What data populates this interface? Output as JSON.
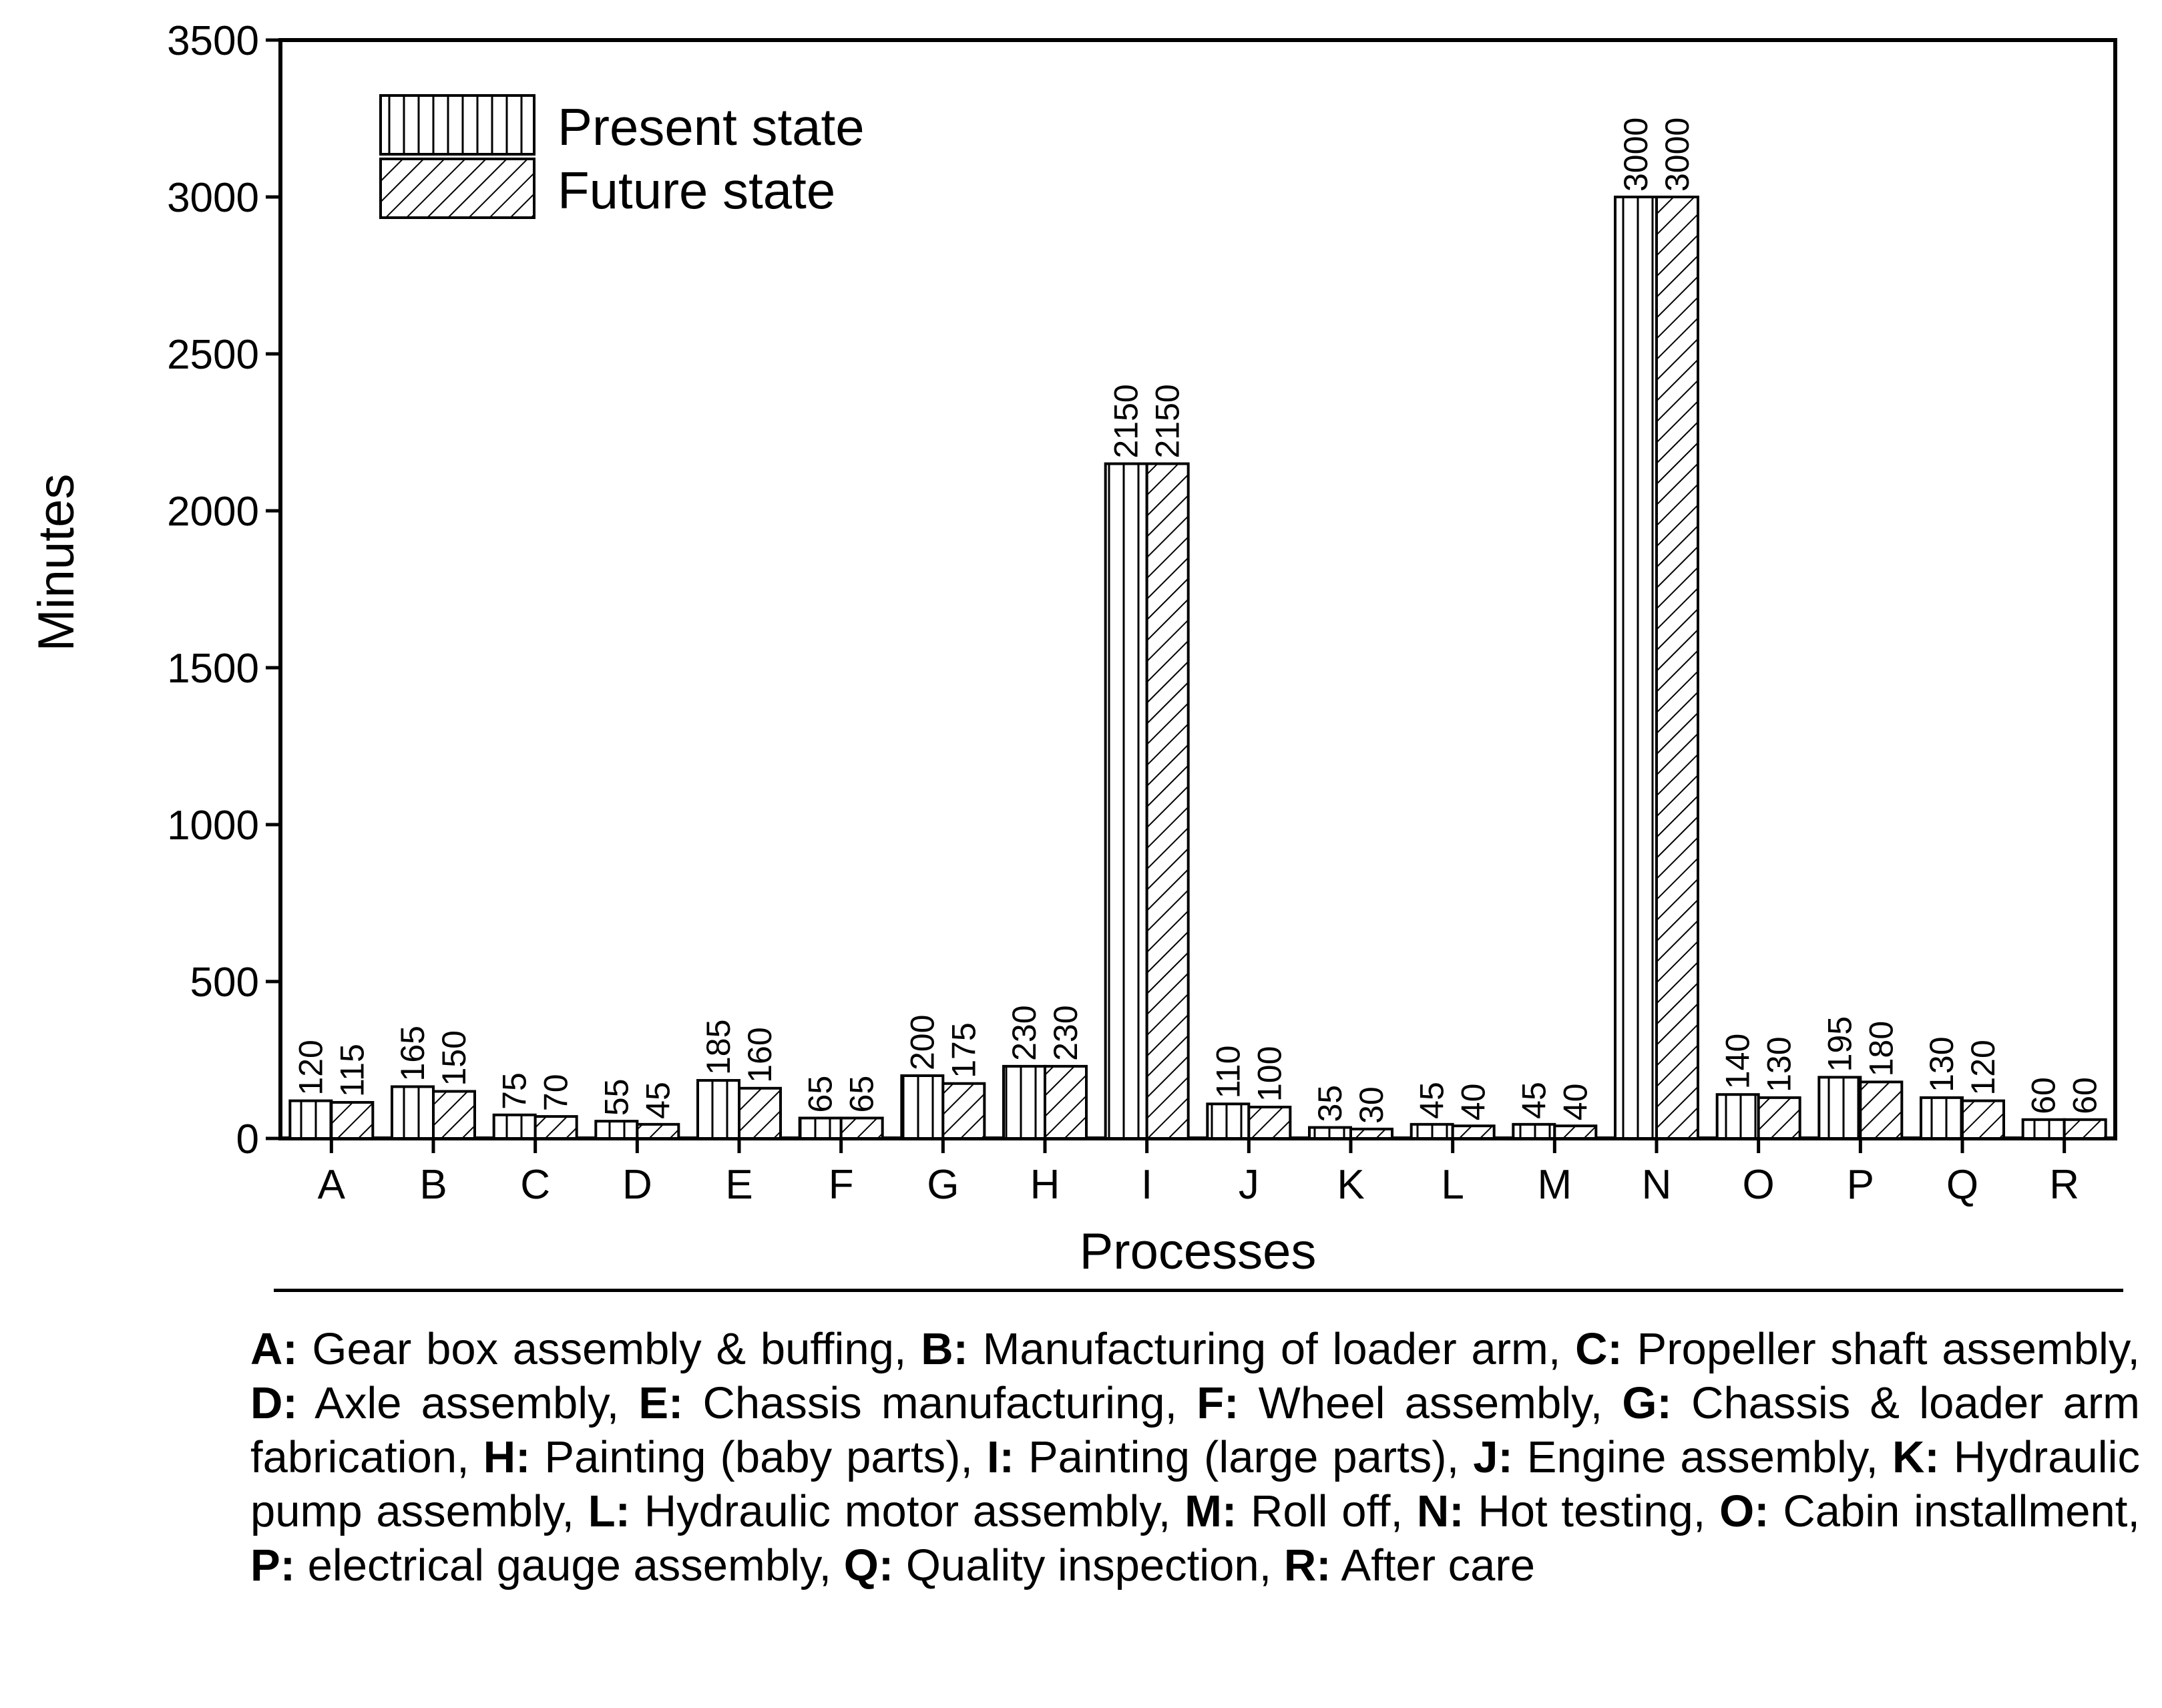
{
  "chart_data": {
    "type": "bar",
    "title": "",
    "xlabel": "Processes",
    "ylabel": "Minutes",
    "ylim": [
      0,
      3500
    ],
    "yticks": [
      0,
      500,
      1000,
      1500,
      2000,
      2500,
      3000,
      3500
    ],
    "categories": [
      "A",
      "B",
      "C",
      "D",
      "E",
      "F",
      "G",
      "H",
      "I",
      "J",
      "K",
      "L",
      "M",
      "N",
      "O",
      "P",
      "Q",
      "R"
    ],
    "series": [
      {
        "name": "Present state",
        "pattern": "vertical-lines",
        "values": [
          120,
          165,
          75,
          55,
          185,
          65,
          200,
          230,
          2150,
          110,
          35,
          45,
          45,
          3000,
          140,
          195,
          130,
          60
        ],
        "labels": [
          "120",
          "165",
          "75",
          "55",
          "185",
          "65",
          "200",
          "230",
          "2150",
          "110",
          "35",
          "45",
          "45",
          "3000",
          "140",
          "195",
          "130",
          "60"
        ]
      },
      {
        "name": "Future state",
        "pattern": "diagonal-lines",
        "values": [
          115,
          150,
          70,
          45,
          160,
          65,
          175,
          230,
          2150,
          100,
          30,
          40,
          40,
          3000,
          130,
          180,
          120,
          60
        ],
        "labels": [
          "115",
          "150",
          "70",
          "45",
          "160",
          "65",
          "175",
          "230",
          "2150",
          "100",
          "30",
          "40",
          "40",
          "3000",
          "130",
          "180",
          "120",
          "60"
        ]
      }
    ],
    "legend": [
      "Present state",
      "Future state"
    ],
    "legend_position": "top-left",
    "grid": false
  },
  "key": [
    {
      "code": "A:",
      "desc": " Gear box assembly & buffing, "
    },
    {
      "code": "B:",
      "desc": " Manufacturing of loader arm, "
    },
    {
      "code": "C:",
      "desc": " Propeller shaft assembly, "
    },
    {
      "code": "D:",
      "desc": " Axle assembly, "
    },
    {
      "code": "E:",
      "desc": " Chassis manufacturing, "
    },
    {
      "code": "F:",
      "desc": " Wheel assembly, "
    },
    {
      "code": "G:",
      "desc": " Chassis & loader arm fabrication, "
    },
    {
      "code": "H:",
      "desc": " Painting (baby parts), "
    },
    {
      "code": "I:",
      "desc": " Painting (large parts), "
    },
    {
      "code": "J:",
      "desc": " Engine assembly, "
    },
    {
      "code": "K:",
      "desc": " Hydraulic pump assembly, "
    },
    {
      "code": "L:",
      "desc": " Hydraulic motor assembly, "
    },
    {
      "code": "M:",
      "desc": " Roll off, "
    },
    {
      "code": "N:",
      "desc": " Hot testing, "
    },
    {
      "code": "O:",
      "desc": " Cabin installment, "
    },
    {
      "code": "P:",
      "desc": " electrical gauge assembly, "
    },
    {
      "code": "Q:",
      "desc": " Quality inspection, "
    },
    {
      "code": "R:",
      "desc": " After care"
    }
  ]
}
